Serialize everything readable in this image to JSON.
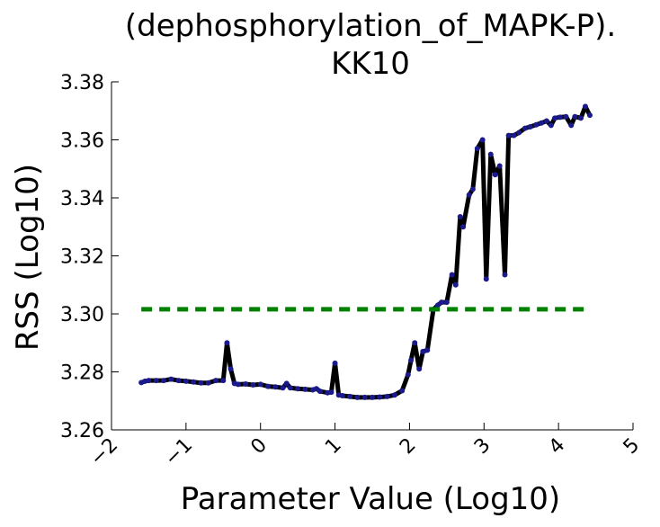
{
  "chart_data": {
    "type": "line",
    "title": [
      "(dephosphorylation_of_MAPK-P).",
      "KK10"
    ],
    "xlabel": "Parameter Value (Log10)",
    "ylabel": "RSS (Log10)",
    "xlim": [
      -2,
      5
    ],
    "ylim": [
      3.26,
      3.38
    ],
    "xticks": [
      {
        "value": -2,
        "label": "−2"
      },
      {
        "value": -1,
        "label": "−1"
      },
      0,
      1,
      2,
      3,
      4,
      5
    ],
    "yticks": [
      {
        "value": 3.26,
        "label": "3.26"
      },
      {
        "value": 3.28,
        "label": "3.28"
      },
      {
        "value": 3.3,
        "label": "3.30"
      },
      {
        "value": 3.32,
        "label": "3.32"
      },
      {
        "value": 3.34,
        "label": "3.34"
      },
      {
        "value": 3.36,
        "label": "3.36"
      },
      {
        "value": 3.38,
        "label": "3.38"
      }
    ],
    "series": [
      {
        "color": "#000000",
        "marker_color": "#1a1a8c",
        "style": "solid",
        "x": [
          -1.6,
          -1.55,
          -1.5,
          -1.4,
          -1.3,
          -1.2,
          -1.1,
          -1.0,
          -0.9,
          -0.8,
          -0.7,
          -0.6,
          -0.5,
          -0.45,
          -0.4,
          -0.35,
          -0.3,
          -0.2,
          -0.1,
          0.0,
          0.1,
          0.2,
          0.3,
          0.35,
          0.4,
          0.5,
          0.6,
          0.7,
          0.75,
          0.8,
          0.9,
          0.95,
          1.0,
          1.05,
          1.1,
          1.2,
          1.3,
          1.4,
          1.5,
          1.6,
          1.7,
          1.8,
          1.9,
          1.98,
          2.02,
          2.07,
          2.13,
          2.18,
          2.24,
          2.32,
          2.38,
          2.43,
          2.5,
          2.57,
          2.62,
          2.68,
          2.72,
          2.8,
          2.85,
          2.91,
          2.98,
          3.03,
          3.09,
          3.15,
          3.21,
          3.28,
          3.33,
          3.4,
          3.47,
          3.55,
          3.62,
          3.7,
          3.77,
          3.84,
          3.9,
          3.95,
          4.02,
          4.1,
          4.17,
          4.22,
          4.3,
          4.36,
          4.42
        ],
        "values": [
          3.2763,
          3.2768,
          3.277,
          3.277,
          3.277,
          3.2775,
          3.277,
          3.2768,
          3.2765,
          3.2762,
          3.2762,
          3.277,
          3.277,
          3.29,
          3.281,
          3.276,
          3.2757,
          3.2758,
          3.2755,
          3.2757,
          3.275,
          3.2748,
          3.2745,
          3.276,
          3.2745,
          3.2742,
          3.274,
          3.2738,
          3.2742,
          3.2733,
          3.2728,
          3.273,
          3.283,
          3.272,
          3.2718,
          3.2715,
          3.2712,
          3.2712,
          3.2712,
          3.2713,
          3.2715,
          3.272,
          3.2735,
          3.279,
          3.284,
          3.29,
          3.281,
          3.287,
          3.2875,
          3.3015,
          3.303,
          3.304,
          3.304,
          3.3135,
          3.31,
          3.3335,
          3.33,
          3.341,
          3.343,
          3.357,
          3.36,
          3.312,
          3.355,
          3.348,
          3.351,
          3.3135,
          3.3615,
          3.3615,
          3.3625,
          3.364,
          3.3645,
          3.3652,
          3.3658,
          3.3665,
          3.365,
          3.3675,
          3.3678,
          3.368,
          3.365,
          3.368,
          3.3675,
          3.3715,
          3.3685
        ]
      },
      {
        "color": "#008000",
        "style": "dashed",
        "x": [
          -1.6,
          4.37
        ],
        "values": [
          3.3016,
          3.3016
        ]
      }
    ]
  }
}
